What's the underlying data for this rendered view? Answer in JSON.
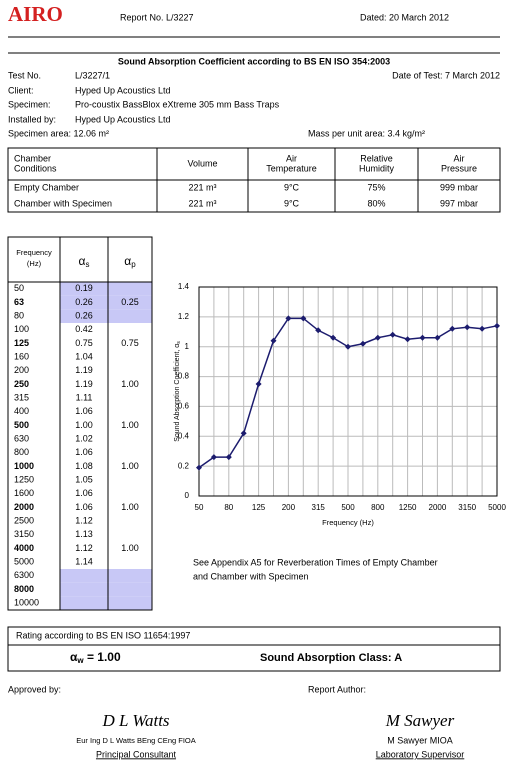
{
  "header": {
    "logo": "AIRO",
    "report_no": "Report No. L/3227",
    "dated": "Dated: 20 March 2012"
  },
  "title": "Sound Absorption Coefficient according to BS EN ISO 354:2003",
  "test_info": {
    "test_no_label": "Test No.",
    "test_no": "L/3227/1",
    "date_of_test": "Date of Test: 7 March 2012",
    "client_label": "Client:",
    "client": "Hyped Up Acoustics Ltd",
    "specimen_label": "Specimen:",
    "specimen": "Pro-coustix BassBlox eXtreme 305 mm Bass Traps",
    "installed_label": "Installed by:",
    "installed": "Hyped Up Acoustics Ltd",
    "specimen_area": "Specimen area: 12.06 m²",
    "mass": "Mass per unit area: 3.4 kg/m²"
  },
  "conditions": {
    "headers": [
      [
        "Chamber",
        "Conditions"
      ],
      [
        "Volume"
      ],
      [
        "Air",
        "Temperature"
      ],
      [
        "Relative",
        "Humidity"
      ],
      [
        "Air",
        "Pressure"
      ]
    ],
    "rows": [
      [
        "Empty Chamber",
        "221 m³",
        "9°C",
        "75%",
        "999 mbar"
      ],
      [
        "Chamber with Specimen",
        "221 m³",
        "9°C",
        "80%",
        "997 mbar"
      ]
    ]
  },
  "frequency_table": {
    "headers": {
      "frequency": [
        "Frequency",
        "(Hz)"
      ],
      "alpha_s": {
        "main": "α",
        "sub": "s"
      },
      "alpha_p": {
        "main": "α",
        "sub": "p"
      }
    },
    "shade_color": "#c8c8f6",
    "rows": [
      {
        "frequency": "50",
        "alpha_s": "0.19",
        "shaded": true
      },
      {
        "frequency": "63",
        "alpha_s": "0.26",
        "alpha_p": "0.25",
        "bold": true,
        "shaded": true
      },
      {
        "frequency": "80",
        "alpha_s": "0.26",
        "shaded": true
      },
      {
        "frequency": "100",
        "alpha_s": "0.42"
      },
      {
        "frequency": "125",
        "alpha_s": "0.75",
        "alpha_p": "0.75",
        "bold": true
      },
      {
        "frequency": "160",
        "alpha_s": "1.04"
      },
      {
        "frequency": "200",
        "alpha_s": "1.19"
      },
      {
        "frequency": "250",
        "alpha_s": "1.19",
        "alpha_p": "1.00",
        "bold": true
      },
      {
        "frequency": "315",
        "alpha_s": "1.11"
      },
      {
        "frequency": "400",
        "alpha_s": "1.06"
      },
      {
        "frequency": "500",
        "alpha_s": "1.00",
        "alpha_p": "1.00",
        "bold": true
      },
      {
        "frequency": "630",
        "alpha_s": "1.02"
      },
      {
        "frequency": "800",
        "alpha_s": "1.06"
      },
      {
        "frequency": "1000",
        "alpha_s": "1.08",
        "alpha_p": "1.00",
        "bold": true
      },
      {
        "frequency": "1250",
        "alpha_s": "1.05"
      },
      {
        "frequency": "1600",
        "alpha_s": "1.06"
      },
      {
        "frequency": "2000",
        "alpha_s": "1.06",
        "alpha_p": "1.00",
        "bold": true
      },
      {
        "frequency": "2500",
        "alpha_s": "1.12"
      },
      {
        "frequency": "3150",
        "alpha_s": "1.13"
      },
      {
        "frequency": "4000",
        "alpha_s": "1.12",
        "alpha_p": "1.00",
        "bold": true
      },
      {
        "frequency": "5000",
        "alpha_s": "1.14"
      },
      {
        "frequency": "6300",
        "shaded": true
      },
      {
        "frequency": "8000",
        "bold": true,
        "shaded": true
      },
      {
        "frequency": "10000",
        "shaded": true
      }
    ]
  },
  "chart_data": {
    "type": "line",
    "x_label": "Frequency (Hz)",
    "y_label": {
      "main": "Sound Absorption Coefficient, α",
      "sub": "s"
    },
    "categories": [
      "50",
      null,
      "80",
      null,
      "125",
      null,
      "200",
      null,
      "315",
      null,
      "500",
      null,
      "800",
      null,
      "1250",
      null,
      "2000",
      null,
      "3150",
      null,
      "5000"
    ],
    "values": [
      0.19,
      0.26,
      0.26,
      0.42,
      0.75,
      1.04,
      1.19,
      1.19,
      1.11,
      1.06,
      1.0,
      1.02,
      1.06,
      1.08,
      1.05,
      1.06,
      1.06,
      1.12,
      1.13,
      1.12,
      1.14
    ],
    "color": "#1c1c6e",
    "ylim": [
      0,
      1.4
    ],
    "yticks": [
      0,
      0.2,
      0.4,
      0.6,
      0.8,
      1,
      1.2,
      1.4
    ],
    "grid": true
  },
  "note": [
    "See Appendix A5 for Reverberation Times of Empty Chamber",
    "and Chamber with Specimen"
  ],
  "rating": {
    "label": "Rating according to BS EN ISO 11654:1997",
    "symbol": "α",
    "sub": "w",
    "value": " = 1.00",
    "class": "Sound Absorption Class: A"
  },
  "signatures": {
    "approved_label": "Approved by:",
    "author_label": "Report Author:",
    "approver_signature": "D L Watts",
    "approver_name": "Eur Ing D L Watts BEng CEng FIOA",
    "approver_role": "Principal Consultant",
    "author_signature": "M Sawyer",
    "author_name": "M Sawyer MIOA",
    "author_role": "Laboratory Supervisor"
  }
}
